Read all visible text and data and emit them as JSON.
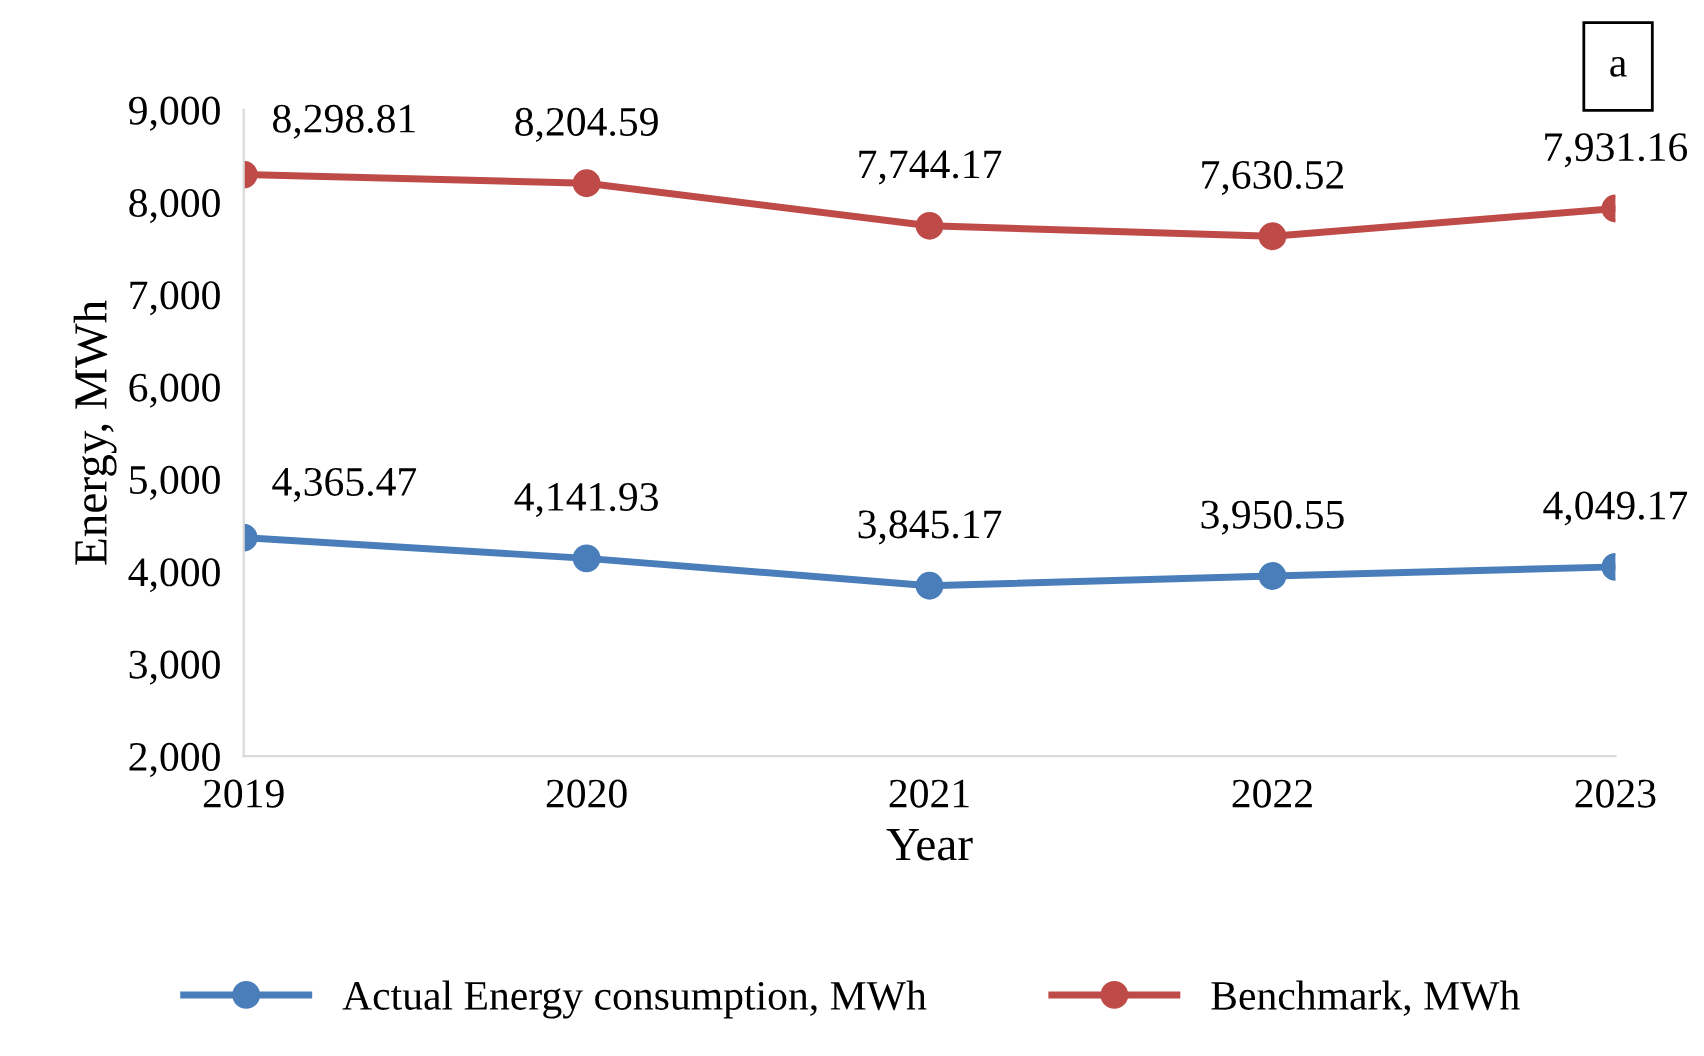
{
  "chart_data": {
    "type": "line",
    "xlabel": "Year",
    "ylabel": "Energy, MWh",
    "x": [
      2019,
      2020,
      2021,
      2022,
      2023
    ],
    "xlim": [
      2019,
      2023
    ],
    "xticks": [
      2019,
      2020,
      2021,
      2022,
      2023
    ],
    "ylim": [
      2000,
      9000
    ],
    "yticks": [
      {
        "value": 2000,
        "label": "2,000"
      },
      {
        "value": 3000,
        "label": "3,000"
      },
      {
        "value": 4000,
        "label": "4,000"
      },
      {
        "value": 5000,
        "label": "5,000"
      },
      {
        "value": 6000,
        "label": "6,000"
      },
      {
        "value": 7000,
        "label": "7,000"
      },
      {
        "value": 8000,
        "label": "8,000"
      },
      {
        "value": 9000,
        "label": "9,000"
      }
    ],
    "series": [
      {
        "name": "Actual Energy consumption, MWh",
        "color": "#4a7ebb",
        "values": [
          4365.47,
          4141.93,
          3845.17,
          3950.55,
          4049.17
        ],
        "value_labels": [
          "4,365.47",
          "4,141.93",
          "3,845.17",
          "3,950.55",
          "4,049.17"
        ]
      },
      {
        "name": "Benchmark, MWh",
        "color": "#be4b48",
        "values": [
          8298.81,
          8204.59,
          7744.17,
          7630.52,
          7931.16
        ],
        "value_labels": [
          "8,298.81",
          "8,204.59",
          "7,744.17",
          "7,630.52",
          "7,931.16"
        ]
      }
    ],
    "marker": "circle",
    "line_style": "solid",
    "grid": false,
    "legend": "bottom",
    "annotations": [
      "a"
    ]
  }
}
